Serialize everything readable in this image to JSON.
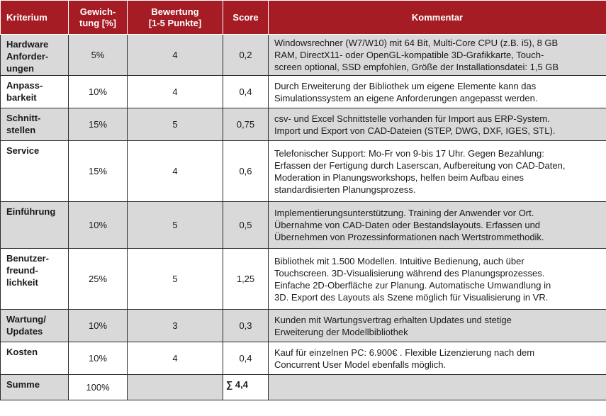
{
  "headers": {
    "kriterium": "Kriterium",
    "gewichtung": [
      "Gewich-",
      "tung [%]"
    ],
    "bewertung": [
      "Bewertung",
      "[1-5 Punkte]"
    ],
    "score": "Score",
    "kommentar": "Kommentar"
  },
  "rows": [
    {
      "kriterium": [
        "Hardware",
        "Anforder-",
        "ungen"
      ],
      "gewichtung": "5%",
      "bewertung": "4",
      "score": "0,2",
      "kommentar": [
        "Windowsrechner (W7/W10) mit 64 Bit, Multi-Core CPU (z.B. i5), 8 GB",
        "RAM, DirectX11- oder OpenGL-kompatible 3D-Grafikkarte, Touch-",
        "screen optional, SSD empfohlen, Größe der Installationsdatei: 1,5 GB"
      ]
    },
    {
      "kriterium": [
        "Anpass-",
        "barkeit"
      ],
      "gewichtung": "10%",
      "bewertung": "4",
      "score": "0,4",
      "kommentar": [
        "Durch Erweiterung der Bibliothek um eigene Elemente kann das",
        "Simulationssystem an eigene Anforderungen angepasst werden."
      ]
    },
    {
      "kriterium": [
        "Schnitt-",
        "stellen"
      ],
      "gewichtung": "15%",
      "bewertung": "5",
      "score": "0,75",
      "kommentar": [
        "csv- und Excel Schnittstelle vorhanden für Import aus ERP-System.",
        "Import und Export von CAD-Dateien (STEP, DWG, DXF, IGES, STL)."
      ]
    },
    {
      "kriterium": [
        "Service"
      ],
      "gewichtung": "15%",
      "bewertung": "4",
      "score": "0,6",
      "kommentar": [
        "Telefonischer Support: Mo-Fr von 9-bis 17 Uhr. Gegen Bezahlung:",
        "Erfassen der Fertigung durch Laserscan, Aufbereitung von CAD-Daten,",
        "Moderation in Planungsworkshops, helfen beim Aufbau eines",
        "standardisierten Planungsprozess."
      ]
    },
    {
      "kriterium": [
        "Einführung"
      ],
      "gewichtung": "10%",
      "bewertung": "5",
      "score": "0,5",
      "kommentar": [
        "Implementierungsunterstützung. Training der Anwender vor Ort.",
        "Übernahme von CAD-Daten oder Bestandslayouts. Erfassen und",
        "Übernehmen von Prozessinformationen nach Wertstrommethodik."
      ]
    },
    {
      "kriterium": [
        "Benutzer-",
        "freund-",
        "lichkeit"
      ],
      "gewichtung": "25%",
      "bewertung": "5",
      "score": "1,25",
      "kommentar": [
        "Bibliothek mit 1.500 Modellen. Intuitive Bedienung, auch über",
        "Touchscreen. 3D-Visualisierung während des Planungsprozesses.",
        "Einfache 2D-Oberfläche zur Planung. Automatische Umwandlung in",
        "3D. Export des Layouts als Szene möglich für Visualisierung in VR."
      ]
    },
    {
      "kriterium": [
        "Wartung/",
        "Updates"
      ],
      "gewichtung": "10%",
      "bewertung": "3",
      "score": "0,3",
      "kommentar": [
        "Kunden mit Wartungsvertrag erhalten Updates und stetige",
        "Erweiterung der Modellbibliothek"
      ]
    },
    {
      "kriterium": [
        "Kosten"
      ],
      "gewichtung": "10%",
      "bewertung": "4",
      "score": "0,4",
      "kommentar": [
        "Kauf für einzelnen PC: 6.900€ . Flexible Lizenzierung nach dem",
        "Concurrent User Model ebenfalls möglich."
      ]
    }
  ],
  "summe": {
    "label": "Summe",
    "gewichtung": "100%",
    "score": "∑ 4,4"
  }
}
